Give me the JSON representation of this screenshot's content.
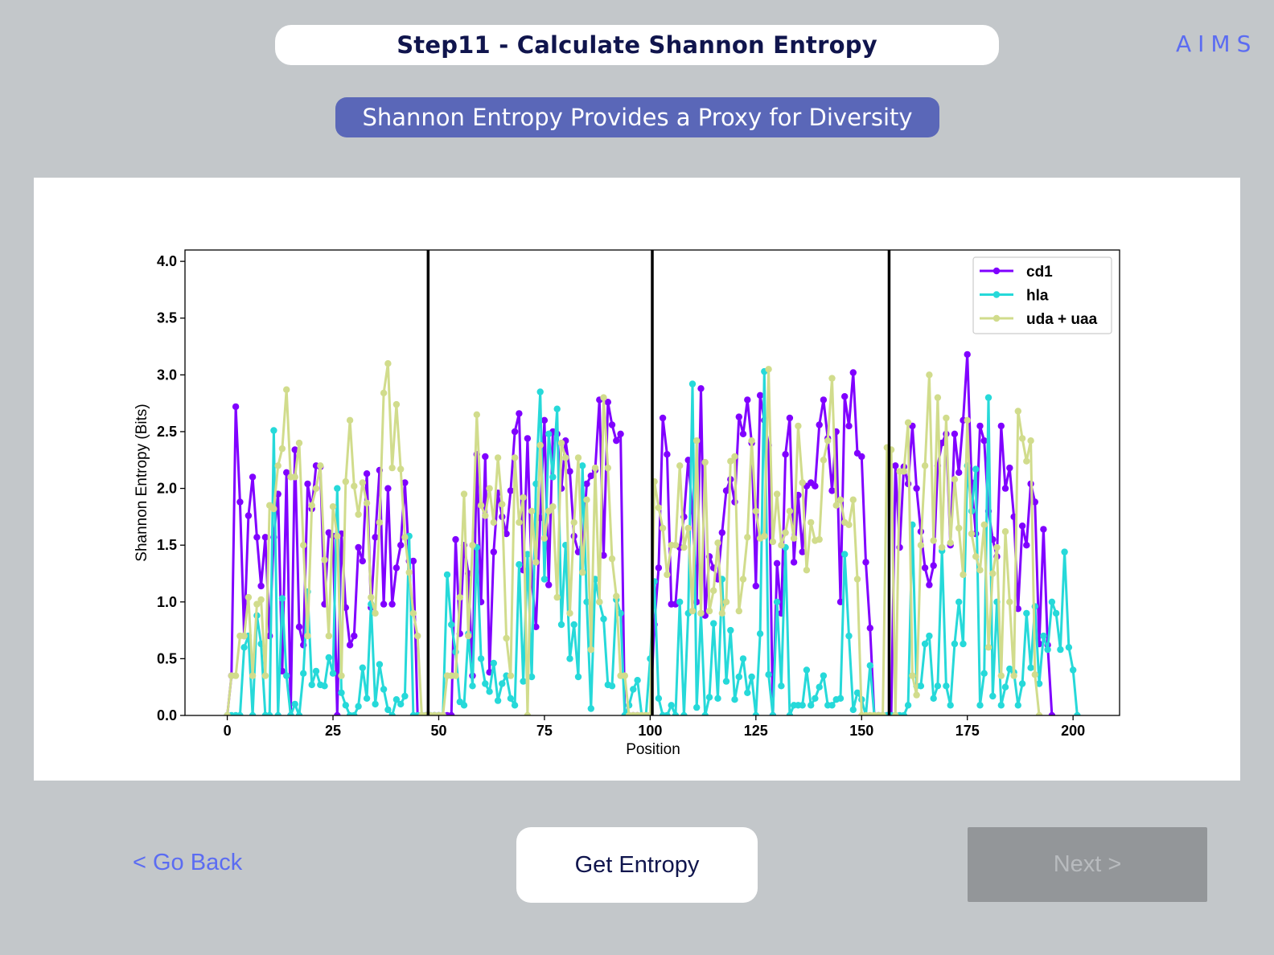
{
  "header": {
    "step_title": "Step11 - Calculate Shannon Entropy",
    "brand": "AIMS",
    "subtitle": "Shannon Entropy Provides a Proxy for Diversity"
  },
  "footer": {
    "back_label": "< Go Back",
    "action_label": "Get Entropy",
    "next_label": "Next >"
  },
  "colors": {
    "background": "#c3c7ca",
    "accent": "#5b6cf2",
    "subtitle_bg": "#5a67b8",
    "title_text": "#10154d",
    "disabled_button": "#939699"
  },
  "chart_data": {
    "type": "line",
    "xlabel": "Position",
    "ylabel": "Shannon Entropy (Bits)",
    "xlim": [
      -10,
      211
    ],
    "ylim": [
      0,
      4.1
    ],
    "xticks": [
      0,
      25,
      50,
      75,
      100,
      125,
      150,
      175,
      200
    ],
    "yticks": [
      0.0,
      0.5,
      1.0,
      1.5,
      2.0,
      2.5,
      3.0,
      3.5,
      4.0
    ],
    "legend_position": "top-right",
    "grid": false,
    "vlines": [
      47.5,
      100.5,
      156.5
    ],
    "series": [
      {
        "name": "cd1",
        "color": "#8000ff",
        "values": [
          0,
          0.35,
          2.72,
          1.88,
          0.7,
          1.76,
          2.1,
          1.57,
          1.14,
          1.57,
          0.7,
          1.57,
          1.95,
          0.39,
          2.14,
          0,
          2.34,
          0.78,
          0.62,
          2.04,
          1.82,
          2.2,
          2.19,
          0.98,
          1.61,
          1.58,
          0,
          1.6,
          0.95,
          0.62,
          0.7,
          1.48,
          1.36,
          2.13,
          0.95,
          1.57,
          2.16,
          0.98,
          2.0,
          0.98,
          1.3,
          1.5,
          2.05,
          1.36,
          1.36,
          0,
          0,
          0,
          0,
          0,
          0,
          0,
          0,
          0,
          1.55,
          0.72,
          1.5,
          1.25,
          0.35,
          2.3,
          1.0,
          2.28,
          0.38,
          1.44,
          1.96,
          1.75,
          1.6,
          1.98,
          2.5,
          2.66,
          1.28,
          2.44,
          1.2,
          0.78,
          1.74,
          2.6,
          1.15,
          2.5,
          2.48,
          2.0,
          2.42,
          2.15,
          1.58,
          1.44,
          1.48,
          2.04,
          2.11,
          2.16,
          2.78,
          1.41,
          2.76,
          2.56,
          2.42,
          2.48,
          0,
          0,
          0,
          0,
          0,
          0,
          0,
          0.8,
          1.3,
          2.62,
          2.3,
          0.98,
          0.98,
          1.48,
          1.75,
          2.25,
          1.8,
          1.0,
          2.88,
          0.88,
          1.4,
          1.3,
          1.2,
          1.61,
          1.98,
          2.08,
          1.88,
          2.63,
          2.48,
          2.78,
          2.4,
          1.14,
          2.82,
          2.6,
          2.38,
          0,
          1.34,
          0.9,
          2.3,
          2.62,
          1.35,
          1.94,
          1.44,
          2.02,
          2.05,
          2.02,
          2.56,
          2.78,
          2.44,
          1.98,
          2.5,
          1.0,
          2.81,
          2.55,
          3.02,
          2.31,
          2.28,
          1.35,
          0.77,
          0,
          0,
          0,
          0,
          0,
          2.2,
          1.48,
          2.19,
          2.04,
          2.55,
          2.0,
          1.62,
          1.3,
          1.15,
          1.32,
          2.2,
          2.4,
          2.48,
          1.5,
          2.48,
          2.14,
          2.6,
          3.18,
          2.05,
          1.6,
          2.55,
          2.42,
          1.8,
          1.55,
          1.4,
          2.55,
          2.0,
          2.18,
          1.75,
          0.94,
          1.67,
          1.5,
          2.04,
          1.88,
          0.63,
          1.64,
          0.62,
          0
        ],
        "note_values_length": 201
      },
      {
        "name": "hla",
        "color": "#26d9d9",
        "values": [
          0,
          0,
          0,
          0,
          0.6,
          0.7,
          0,
          0.88,
          0.63,
          0,
          0,
          2.51,
          0,
          1.03,
          0.35,
          0,
          0.1,
          0,
          0.37,
          1.09,
          0.27,
          0.39,
          0.27,
          0.26,
          0.51,
          0.37,
          2.0,
          0.2,
          0.09,
          0,
          0,
          0.08,
          0.42,
          0.15,
          0.98,
          0.1,
          0.45,
          0.23,
          0.05,
          0,
          0.14,
          0.1,
          0.17,
          1.58,
          0,
          0,
          0,
          0,
          0,
          0,
          0,
          0,
          1.24,
          0.8,
          0.56,
          0.12,
          0.09,
          0.72,
          0.26,
          1.48,
          0.5,
          0.28,
          0.21,
          0.46,
          0.13,
          0.28,
          0.35,
          0.15,
          0.09,
          1.33,
          0.3,
          1.42,
          0.34,
          2.04,
          2.85,
          1.2,
          2.48,
          2.1,
          2.7,
          0.8,
          1.5,
          0.5,
          0.8,
          0.34,
          2.2,
          1.0,
          0.06,
          1.2,
          1.0,
          0.85,
          0.27,
          0.26,
          1.02,
          0.9,
          0,
          0.09,
          0.23,
          0.31,
          0,
          0,
          0.5,
          1.18,
          0.15,
          0,
          0,
          0.09,
          0,
          1.0,
          0,
          0.9,
          2.92,
          0.07,
          0.9,
          0,
          0.16,
          0.81,
          0.15,
          1.2,
          0.3,
          0.75,
          0.14,
          0.34,
          0.5,
          0.2,
          0.34,
          0.0,
          0.72,
          3.03,
          0.36,
          0,
          1.0,
          0.26,
          1.48,
          0,
          0.09,
          0.09,
          0.09,
          0.4,
          0.09,
          0.15,
          0.25,
          0.35,
          0.09,
          0.09,
          0.14,
          0.15,
          1.42,
          0.7,
          0.05,
          0.2,
          0.14,
          0,
          0.44,
          0,
          0,
          0,
          0,
          0,
          0,
          0,
          0,
          0.09,
          1.68,
          0.26,
          0.26,
          0.63,
          0.7,
          0.15,
          0.26,
          1.45,
          0.26,
          0.09,
          0.63,
          1.0,
          0.63,
          2.2,
          1.8,
          2.17,
          0.09,
          0.37,
          2.8,
          0.17,
          1.0,
          0.09,
          0.25,
          0.41,
          0.38,
          0.09,
          0.28,
          0.9,
          0.42,
          0.96,
          0.28,
          0.7,
          0.58,
          1.0,
          0.9,
          0.58,
          1.44,
          0.6,
          0.4,
          0
        ],
        "note_values_length": 201
      },
      {
        "name": "uda + uaa",
        "color": "#d1dc8c",
        "values": [
          0,
          0.35,
          0.35,
          0.7,
          0.7,
          1.04,
          0.35,
          0.98,
          1.02,
          0.35,
          1.85,
          1.82,
          2.2,
          2.35,
          2.87,
          2.1,
          2.1,
          2.4,
          1.5,
          0.7,
          1.85,
          2.0,
          2.2,
          1.37,
          0.7,
          1.84,
          1.58,
          0.35,
          2.06,
          2.6,
          2.02,
          1.77,
          2.05,
          1.87,
          1.04,
          0.9,
          1.7,
          2.84,
          3.1,
          2.18,
          2.74,
          2.17,
          1.57,
          1.26,
          0.9,
          0.7,
          0,
          0,
          0,
          0,
          0,
          0,
          0.35,
          0.35,
          0.35,
          1.04,
          1.95,
          0.7,
          1.5,
          2.65,
          1.85,
          1.76,
          2.0,
          1.7,
          2.27,
          1.86,
          0.68,
          0.35,
          2.27,
          1.7,
          1.92,
          0,
          1.8,
          1.35,
          2.38,
          1.56,
          1.8,
          1.84,
          1.04,
          2.4,
          2.27,
          0.9,
          1.7,
          2.27,
          1.26,
          1.9,
          0.58,
          2.18,
          1.0,
          2.8,
          2.18,
          1.38,
          1.05,
          0.35,
          0.35,
          0,
          0,
          0,
          0,
          0,
          0,
          2.06,
          1.83,
          1.65,
          1.24,
          1.5,
          1.5,
          2.2,
          1.48,
          1.65,
          0.92,
          2.42,
          0.9,
          2.23,
          0.92,
          1.1,
          1.52,
          0.9,
          1.0,
          2.24,
          2.28,
          0.92,
          1.2,
          1.57,
          2.42,
          1.8,
          1.56,
          1.58,
          3.05,
          1.53,
          1.95,
          1.5,
          1.61,
          1.8,
          1.56,
          2.55,
          2.05,
          1.28,
          1.7,
          1.54,
          1.55,
          2.25,
          2.42,
          2.97,
          1.85,
          1.9,
          1.7,
          1.68,
          1.9,
          1.2,
          0,
          0,
          0,
          0,
          0,
          0,
          2.36,
          2.34,
          0,
          2.15,
          2.15,
          2.58,
          0.35,
          0.18,
          1.5,
          2.2,
          3.0,
          1.54,
          2.8,
          1.48,
          2.62,
          1.52,
          2.08,
          1.65,
          1.24,
          2.6,
          1.6,
          1.4,
          1.28,
          1.68,
          0.6,
          1.25,
          1.48,
          0.35,
          1.62,
          1.0,
          0.35,
          2.68,
          2.44,
          2.24,
          2.42,
          0.36,
          0
        ],
        "note_values_length": 201
      }
    ]
  }
}
